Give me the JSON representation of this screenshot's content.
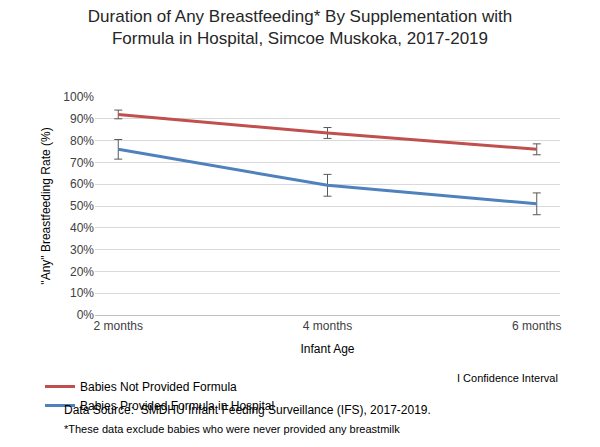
{
  "chart_data": {
    "type": "line",
    "title": "Duration of Any Breastfeeding* By Supplementation with Formula in Hospital, Simcoe Muskoka, 2017-2019",
    "x_label": "Infant Age",
    "y_label": "\"Any\" Breastfeeding Rate (%)",
    "categories": [
      "2 months",
      "4 months",
      "6 months"
    ],
    "series": [
      {
        "name": "Babies Not Provided Formula",
        "color": "#c0504d",
        "values": [
          92,
          83.5,
          76
        ],
        "error": [
          2,
          2.5,
          2.5
        ]
      },
      {
        "name": "Babies Provided Formula in Hospital",
        "color": "#4f81bd",
        "values": [
          76,
          59.5,
          51
        ],
        "error": [
          4.5,
          5,
          5
        ]
      }
    ],
    "ylim": [
      0,
      100
    ],
    "yticks": [
      {
        "value": 0,
        "label": "0%"
      },
      {
        "value": 10,
        "label": "10%"
      },
      {
        "value": 20,
        "label": "20%"
      },
      {
        "value": 30,
        "label": "30%"
      },
      {
        "value": 40,
        "label": "40%"
      },
      {
        "value": 50,
        "label": "50%"
      },
      {
        "value": 60,
        "label": "60%"
      },
      {
        "value": 70,
        "label": "70%"
      },
      {
        "value": 80,
        "label": "80%"
      },
      {
        "value": 90,
        "label": "90%"
      },
      {
        "value": 100,
        "label": "100%"
      }
    ],
    "grid": true,
    "legend": "bottom",
    "annotations": [
      "I Confidence Interval",
      "Data Source:  SMDHU Infant Feeding Surveillance (IFS), 2017-2019.",
      "*These data exclude babies who were never provided any breastmilk"
    ]
  }
}
